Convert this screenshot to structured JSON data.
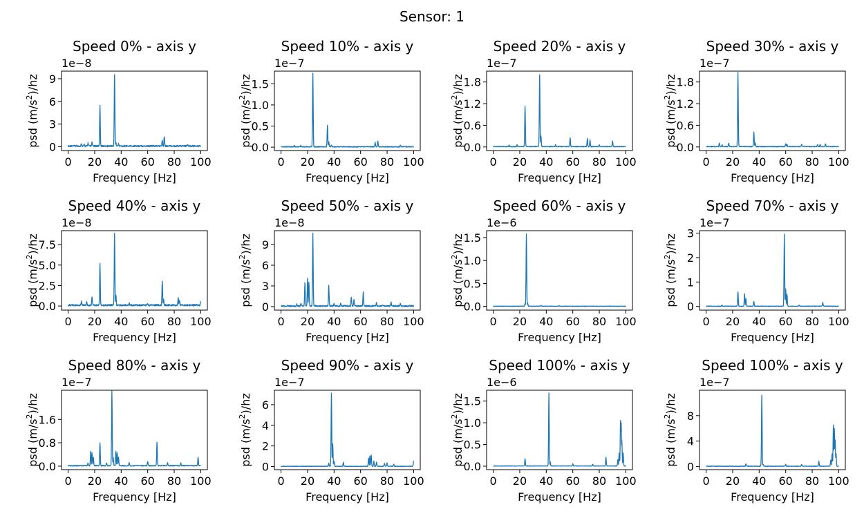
{
  "figure": {
    "suptitle": "Sensor: 1",
    "line_color": "#1f77b4"
  },
  "chart_data": [
    {
      "type": "line",
      "title": "Speed 0% - axis y",
      "xlabel": "Frequency [Hz]",
      "ylabel_prefix": "psd (m/s",
      "ylabel_sup": "2",
      "ylabel_suffix": ")/hz",
      "offset": "1e−8",
      "xlim": [
        0,
        100
      ],
      "ylim": [
        -0.5,
        10
      ],
      "xticks": [
        0,
        20,
        40,
        60,
        80,
        100
      ],
      "yticks": [
        0,
        3,
        6,
        9
      ],
      "ytick_labels": [
        "0",
        "3",
        "6",
        "9"
      ],
      "noise": 0.2,
      "peaks": [
        [
          10,
          0.3
        ],
        [
          12,
          0.2
        ],
        [
          15,
          0.4
        ],
        [
          18,
          0.5
        ],
        [
          24,
          5.3
        ],
        [
          35,
          9.5
        ],
        [
          36,
          0.5
        ],
        [
          38,
          0.3
        ],
        [
          71,
          0.8
        ],
        [
          72.5,
          1.3
        ],
        [
          90,
          0.2
        ]
      ]
    },
    {
      "type": "line",
      "title": "Speed 10% - axis y",
      "xlabel": "Frequency [Hz]",
      "ylabel_prefix": "psd (m/s",
      "ylabel_sup": "2",
      "ylabel_suffix": ")/hz",
      "offset": "1e−7",
      "xlim": [
        0,
        100
      ],
      "ylim": [
        -0.08,
        1.8
      ],
      "xticks": [
        0,
        20,
        40,
        60,
        80,
        100
      ],
      "yticks": [
        0,
        0.5,
        1,
        1.5
      ],
      "ytick_labels": [
        "0.0",
        "0.5",
        "1.0",
        "1.5"
      ],
      "noise": 0.02,
      "peaks": [
        [
          10,
          0.03
        ],
        [
          15,
          0.03
        ],
        [
          24,
          1.75
        ],
        [
          35,
          0.5
        ],
        [
          36,
          0.12
        ],
        [
          38,
          0.04
        ],
        [
          71,
          0.1
        ],
        [
          73,
          0.14
        ],
        [
          90,
          0.04
        ]
      ]
    },
    {
      "type": "line",
      "title": "Speed 20% - axis y",
      "xlabel": "Frequency [Hz]",
      "ylabel_prefix": "psd (m/s",
      "ylabel_sup": "2",
      "ylabel_suffix": ")/hz",
      "offset": "1e−7",
      "xlim": [
        0,
        100
      ],
      "ylim": [
        -0.1,
        2.1
      ],
      "xticks": [
        0,
        20,
        40,
        60,
        80,
        100
      ],
      "yticks": [
        0,
        0.6,
        1.2,
        1.8
      ],
      "ytick_labels": [
        "0.0",
        "0.6",
        "1.2",
        "1.8"
      ],
      "noise": 0.02,
      "peaks": [
        [
          12,
          0.05
        ],
        [
          18,
          0.05
        ],
        [
          24,
          1.12
        ],
        [
          35,
          2.0
        ],
        [
          36,
          0.3
        ],
        [
          47,
          0.05
        ],
        [
          58,
          0.25
        ],
        [
          71,
          0.22
        ],
        [
          73,
          0.18
        ],
        [
          80,
          0.05
        ],
        [
          90,
          0.15
        ]
      ]
    },
    {
      "type": "line",
      "title": "Speed 30% - axis y",
      "xlabel": "Frequency [Hz]",
      "ylabel_prefix": "psd (m/s",
      "ylabel_sup": "2",
      "ylabel_suffix": ")/hz",
      "offset": "1e−7",
      "xlim": [
        0,
        100
      ],
      "ylim": [
        -0.1,
        2.1
      ],
      "xticks": [
        0,
        20,
        40,
        60,
        80,
        100
      ],
      "yticks": [
        0,
        0.6,
        1.2,
        1.8
      ],
      "ytick_labels": [
        "0.0",
        "0.6",
        "1.2",
        "1.8"
      ],
      "noise": 0.02,
      "peaks": [
        [
          10,
          0.1
        ],
        [
          12,
          0.05
        ],
        [
          17,
          0.1
        ],
        [
          24,
          2.05
        ],
        [
          36,
          0.4
        ],
        [
          37,
          0.1
        ],
        [
          60,
          0.08
        ],
        [
          61,
          0.06
        ],
        [
          72,
          0.06
        ],
        [
          84,
          0.05
        ],
        [
          86,
          0.06
        ],
        [
          90,
          0.08
        ]
      ]
    },
    {
      "type": "line",
      "title": "Speed 40% - axis y",
      "xlabel": "Frequency [Hz]",
      "ylabel_prefix": "psd (m/s",
      "ylabel_sup": "2",
      "ylabel_suffix": ")/hz",
      "offset": "1e−8",
      "xlim": [
        0,
        100
      ],
      "ylim": [
        -0.5,
        9.2
      ],
      "xticks": [
        0,
        20,
        40,
        60,
        80,
        100
      ],
      "yticks": [
        0,
        2.5,
        5,
        7.5
      ],
      "ytick_labels": [
        "0.0",
        "2.5",
        "5.0",
        "7.5"
      ],
      "noise": 0.2,
      "peaks": [
        [
          10,
          0.5
        ],
        [
          14,
          0.5
        ],
        [
          18,
          1.0
        ],
        [
          24,
          5.1
        ],
        [
          35,
          8.7
        ],
        [
          36,
          1.3
        ],
        [
          46,
          0.3
        ],
        [
          60,
          0.2
        ],
        [
          71,
          3.0
        ],
        [
          72,
          0.8
        ],
        [
          83,
          1.0
        ],
        [
          84,
          0.6
        ],
        [
          100,
          0.4
        ]
      ]
    },
    {
      "type": "line",
      "title": "Speed 50% - axis y",
      "xlabel": "Frequency [Hz]",
      "ylabel_prefix": "psd (m/s",
      "ylabel_sup": "2",
      "ylabel_suffix": ")/hz",
      "offset": "1e−8",
      "xlim": [
        0,
        100
      ],
      "ylim": [
        -0.5,
        11
      ],
      "xticks": [
        0,
        20,
        40,
        60,
        80,
        100
      ],
      "yticks": [
        0,
        3,
        6,
        9
      ],
      "ytick_labels": [
        "0",
        "3",
        "6",
        "9"
      ],
      "noise": 0.2,
      "peaks": [
        [
          12,
          0.3
        ],
        [
          15,
          0.4
        ],
        [
          18,
          3.3
        ],
        [
          20,
          4.1
        ],
        [
          21,
          3.5
        ],
        [
          24,
          10.5
        ],
        [
          36,
          3.0
        ],
        [
          40,
          0.4
        ],
        [
          45,
          0.4
        ],
        [
          53,
          1.3
        ],
        [
          55,
          1.0
        ],
        [
          62,
          2.0
        ],
        [
          72,
          0.5
        ],
        [
          83,
          0.5
        ],
        [
          90,
          0.3
        ]
      ]
    },
    {
      "type": "line",
      "title": "Speed 60% - axis y",
      "xlabel": "Frequency [Hz]",
      "ylabel_prefix": "psd (m/s",
      "ylabel_sup": "2",
      "ylabel_suffix": ")/hz",
      "offset": "1e−6",
      "xlim": [
        0,
        100
      ],
      "ylim": [
        -0.08,
        1.65
      ],
      "xticks": [
        0,
        20,
        40,
        60,
        80,
        100
      ],
      "yticks": [
        0,
        0.5,
        1,
        1.5
      ],
      "ytick_labels": [
        "0.0",
        "0.5",
        "1.0",
        "1.5"
      ],
      "noise": 0.01,
      "peaks": [
        [
          24,
          0.05
        ],
        [
          25,
          1.57
        ],
        [
          26,
          0.06
        ],
        [
          36,
          0.02
        ],
        [
          50,
          0.015
        ]
      ]
    },
    {
      "type": "line",
      "title": "Speed 70% - axis y",
      "xlabel": "Frequency [Hz]",
      "ylabel_prefix": "psd (m/s",
      "ylabel_sup": "2",
      "ylabel_suffix": ")/hz",
      "offset": "1e−7",
      "xlim": [
        0,
        100
      ],
      "ylim": [
        -0.15,
        3.1
      ],
      "xticks": [
        0,
        20,
        40,
        60,
        80,
        100
      ],
      "yticks": [
        0,
        1,
        2,
        3
      ],
      "ytick_labels": [
        "0",
        "1",
        "2",
        "3"
      ],
      "noise": 0.02,
      "peaks": [
        [
          12,
          0.05
        ],
        [
          24,
          0.6
        ],
        [
          29,
          0.5
        ],
        [
          30,
          0.3
        ],
        [
          36,
          0.2
        ],
        [
          59,
          2.95
        ],
        [
          60,
          0.7
        ],
        [
          61,
          0.5
        ],
        [
          70,
          0.05
        ],
        [
          88,
          0.15
        ]
      ]
    },
    {
      "type": "line",
      "title": "Speed 80% - axis y",
      "xlabel": "Frequency [Hz]",
      "ylabel_prefix": "psd (m/s",
      "ylabel_sup": "2",
      "ylabel_suffix": ")/hz",
      "offset": "1e−7",
      "xlim": [
        0,
        100
      ],
      "ylim": [
        -0.12,
        2.6
      ],
      "xticks": [
        0,
        20,
        40,
        60,
        80,
        100
      ],
      "yticks": [
        0,
        0.8,
        1.6
      ],
      "ytick_labels": [
        "0.0",
        "0.8",
        "1.6"
      ],
      "noise": 0.03,
      "peaks": [
        [
          15,
          0.1
        ],
        [
          17,
          0.5
        ],
        [
          18,
          0.45
        ],
        [
          19,
          0.3
        ],
        [
          24,
          0.8
        ],
        [
          29,
          0.1
        ],
        [
          33,
          2.55
        ],
        [
          34,
          0.3
        ],
        [
          36,
          0.5
        ],
        [
          37,
          0.45
        ],
        [
          38,
          0.3
        ],
        [
          46,
          0.1
        ],
        [
          60,
          0.15
        ],
        [
          67,
          0.8
        ],
        [
          75,
          0.1
        ],
        [
          85,
          0.1
        ],
        [
          98,
          0.3
        ]
      ]
    },
    {
      "type": "line",
      "title": "Speed 90% - axis y",
      "xlabel": "Frequency [Hz]",
      "ylabel_prefix": "psd (m/s",
      "ylabel_sup": "2",
      "ylabel_suffix": ")/hz",
      "offset": "1e−7",
      "xlim": [
        0,
        100
      ],
      "ylim": [
        -0.3,
        7.4
      ],
      "xticks": [
        0,
        20,
        40,
        60,
        80,
        100
      ],
      "yticks": [
        0,
        2,
        4,
        6
      ],
      "ytick_labels": [
        "0",
        "2",
        "4",
        "6"
      ],
      "noise": 0.05,
      "peaks": [
        [
          36,
          0.3
        ],
        [
          38,
          7.1
        ],
        [
          39,
          2.2
        ],
        [
          40,
          0.5
        ],
        [
          47,
          0.4
        ],
        [
          66,
          0.8
        ],
        [
          67,
          1.0
        ],
        [
          68,
          1.1
        ],
        [
          70,
          0.5
        ],
        [
          72,
          0.4
        ],
        [
          78,
          0.3
        ],
        [
          80,
          0.35
        ],
        [
          85,
          0.2
        ],
        [
          100,
          0.5
        ]
      ]
    },
    {
      "type": "line",
      "title": "Speed 100% - axis y",
      "xlabel": "Frequency [Hz]",
      "ylabel_prefix": "psd (m/s",
      "ylabel_sup": "2",
      "ylabel_suffix": ")/hz",
      "offset": "1e−6",
      "xlim": [
        0,
        100
      ],
      "ylim": [
        -0.08,
        1.75
      ],
      "xticks": [
        0,
        20,
        40,
        60,
        80,
        100
      ],
      "yticks": [
        0,
        0.5,
        1,
        1.5
      ],
      "ytick_labels": [
        "0.0",
        "0.5",
        "1.0",
        "1.5"
      ],
      "noise": 0.01,
      "peaks": [
        [
          24,
          0.17
        ],
        [
          42,
          1.68
        ],
        [
          43,
          0.1
        ],
        [
          60,
          0.05
        ],
        [
          75,
          0.04
        ],
        [
          85,
          0.2
        ],
        [
          94,
          0.15
        ],
        [
          95,
          0.3
        ],
        [
          96,
          1.05
        ],
        [
          96.5,
          1.0
        ],
        [
          97,
          0.6
        ],
        [
          98,
          0.3
        ]
      ]
    },
    {
      "type": "line",
      "title": "Speed 100% - axis y",
      "xlabel": "Frequency [Hz]",
      "ylabel_prefix": "psd (m/s",
      "ylabel_sup": "2",
      "ylabel_suffix": ")/hz",
      "offset": "1e−7",
      "xlim": [
        0,
        100
      ],
      "ylim": [
        -0.5,
        12
      ],
      "xticks": [
        0,
        20,
        40,
        60,
        80,
        100
      ],
      "yticks": [
        0,
        4,
        8
      ],
      "ytick_labels": [
        "0",
        "4",
        "8"
      ],
      "noise": 0.08,
      "peaks": [
        [
          30,
          0.4
        ],
        [
          42,
          11.2
        ],
        [
          43,
          0.3
        ],
        [
          60,
          0.3
        ],
        [
          72,
          0.3
        ],
        [
          85,
          0.8
        ],
        [
          94,
          1.0
        ],
        [
          95,
          2.0
        ],
        [
          96,
          6.5
        ],
        [
          96.7,
          6.0
        ],
        [
          97.3,
          4.2
        ],
        [
          98,
          2.0
        ]
      ]
    }
  ]
}
